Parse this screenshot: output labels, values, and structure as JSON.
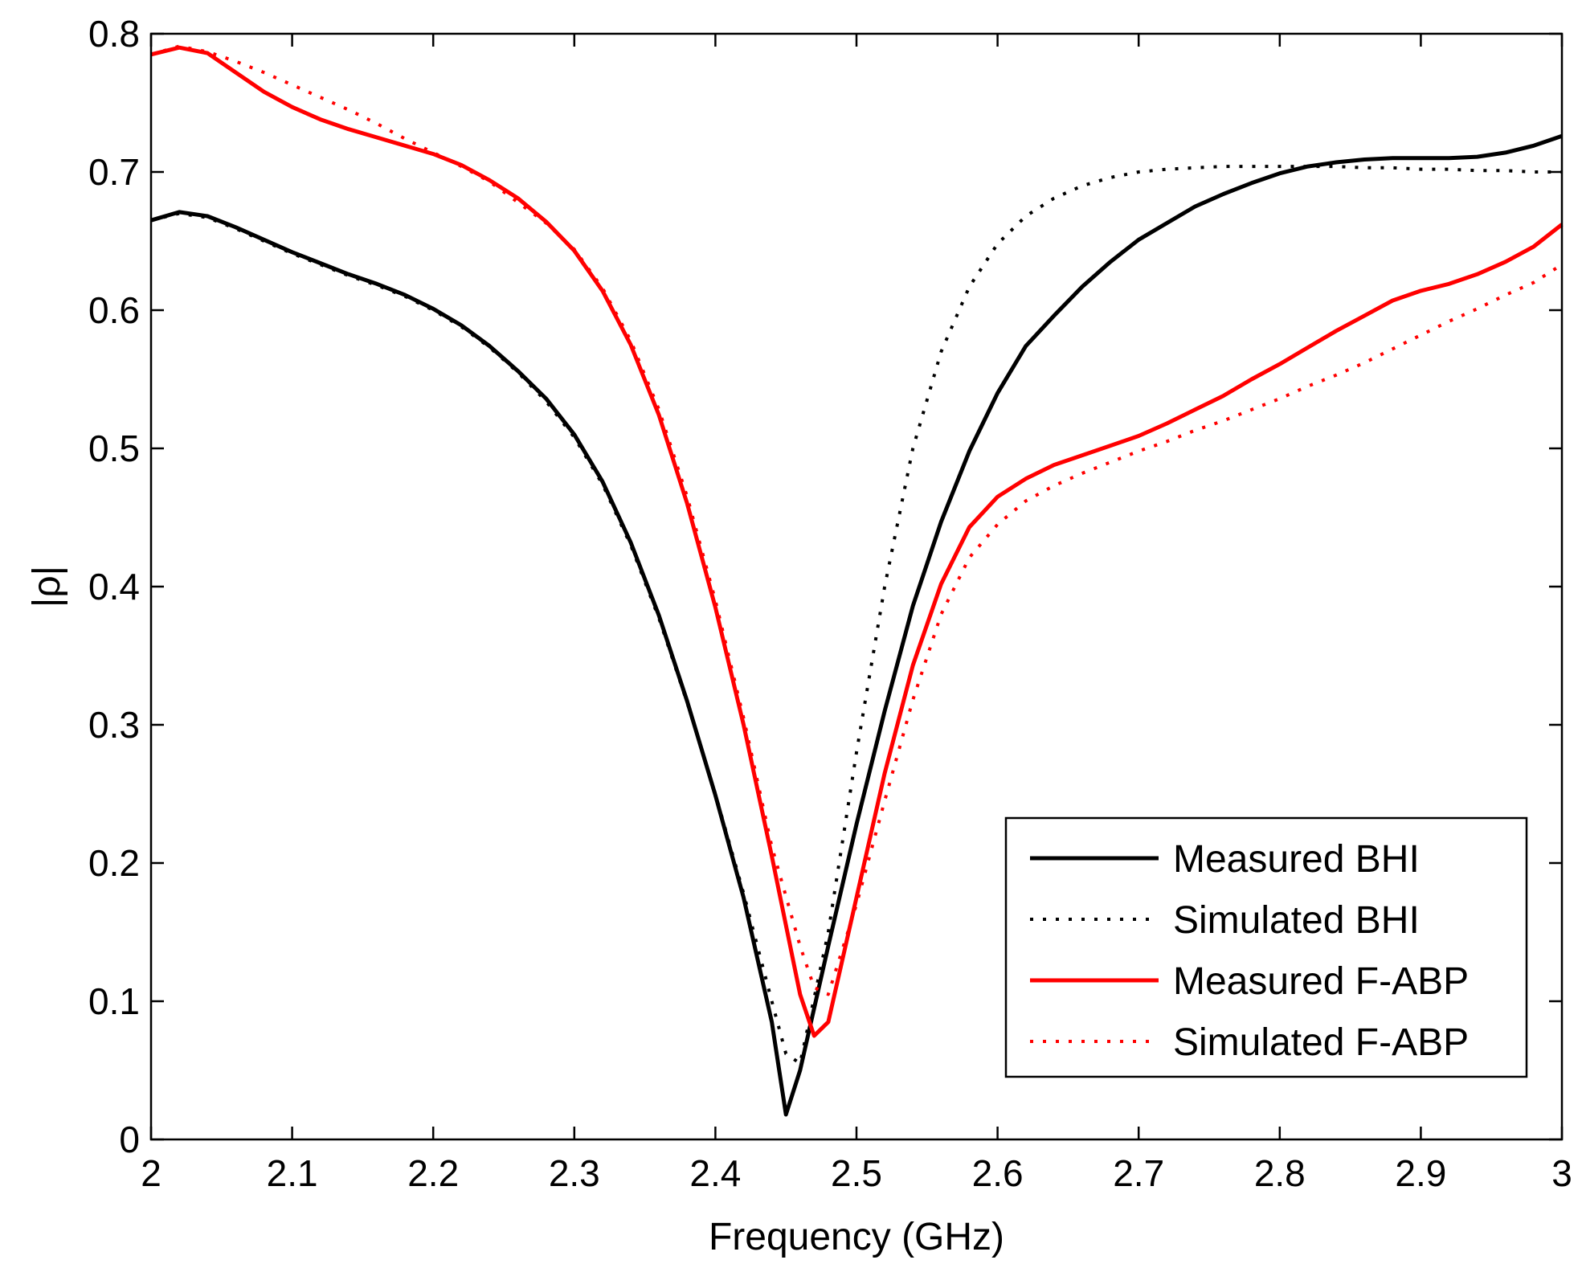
{
  "chart_data": {
    "type": "line",
    "title": "",
    "xlabel": "Frequency (GHz)",
    "ylabel": "|ρ|",
    "xlim": [
      2,
      3
    ],
    "ylim": [
      0,
      0.8
    ],
    "xticks": [
      2,
      2.1,
      2.2,
      2.3,
      2.4,
      2.5,
      2.6,
      2.7,
      2.8,
      2.9,
      3
    ],
    "xtick_labels": [
      "2",
      "2.1",
      "2.2",
      "2.3",
      "2.4",
      "2.5",
      "2.6",
      "2.7",
      "2.8",
      "2.9",
      "3"
    ],
    "yticks": [
      0,
      0.1,
      0.2,
      0.3,
      0.4,
      0.5,
      0.6,
      0.7,
      0.8
    ],
    "ytick_labels": [
      "0",
      "0.1",
      "0.2",
      "0.3",
      "0.4",
      "0.5",
      "0.6",
      "0.7",
      "0.8"
    ],
    "grid": false,
    "legend_position": "bottom-right",
    "series": [
      {
        "name": "Measured BHI",
        "color": "#000000",
        "style": "solid",
        "x": [
          2.0,
          2.02,
          2.04,
          2.06,
          2.08,
          2.1,
          2.12,
          2.14,
          2.16,
          2.18,
          2.2,
          2.22,
          2.24,
          2.26,
          2.28,
          2.3,
          2.32,
          2.34,
          2.36,
          2.38,
          2.4,
          2.42,
          2.44,
          2.45,
          2.46,
          2.48,
          2.5,
          2.52,
          2.54,
          2.56,
          2.58,
          2.6,
          2.62,
          2.64,
          2.66,
          2.68,
          2.7,
          2.72,
          2.74,
          2.76,
          2.78,
          2.8,
          2.82,
          2.84,
          2.86,
          2.88,
          2.9,
          2.92,
          2.94,
          2.96,
          2.98,
          3.0
        ],
        "y": [
          0.665,
          0.671,
          0.668,
          0.66,
          0.651,
          0.642,
          0.634,
          0.626,
          0.619,
          0.611,
          0.601,
          0.589,
          0.574,
          0.556,
          0.536,
          0.51,
          0.476,
          0.432,
          0.379,
          0.317,
          0.249,
          0.175,
          0.085,
          0.018,
          0.05,
          0.14,
          0.228,
          0.31,
          0.386,
          0.447,
          0.498,
          0.54,
          0.574,
          0.596,
          0.617,
          0.635,
          0.651,
          0.663,
          0.675,
          0.684,
          0.692,
          0.699,
          0.704,
          0.707,
          0.709,
          0.71,
          0.71,
          0.71,
          0.711,
          0.714,
          0.719,
          0.726
        ]
      },
      {
        "name": "Simulated BHI",
        "color": "#000000",
        "style": "dotted",
        "x": [
          2.0,
          2.02,
          2.04,
          2.06,
          2.08,
          2.1,
          2.12,
          2.14,
          2.16,
          2.18,
          2.2,
          2.22,
          2.24,
          2.26,
          2.28,
          2.3,
          2.32,
          2.34,
          2.36,
          2.38,
          2.4,
          2.42,
          2.44,
          2.45,
          2.46,
          2.48,
          2.5,
          2.52,
          2.54,
          2.56,
          2.58,
          2.6,
          2.62,
          2.64,
          2.66,
          2.68,
          2.7,
          2.72,
          2.74,
          2.76,
          2.78,
          2.8,
          2.82,
          2.84,
          2.86,
          2.88,
          2.9,
          2.92,
          2.94,
          2.96,
          2.98,
          3.0
        ],
        "y": [
          0.665,
          0.67,
          0.667,
          0.659,
          0.65,
          0.641,
          0.633,
          0.625,
          0.618,
          0.61,
          0.6,
          0.588,
          0.573,
          0.555,
          0.534,
          0.508,
          0.474,
          0.43,
          0.377,
          0.316,
          0.25,
          0.178,
          0.1,
          0.062,
          0.055,
          0.15,
          0.28,
          0.4,
          0.5,
          0.57,
          0.617,
          0.648,
          0.668,
          0.681,
          0.69,
          0.696,
          0.7,
          0.702,
          0.703,
          0.704,
          0.704,
          0.704,
          0.704,
          0.704,
          0.703,
          0.703,
          0.702,
          0.702,
          0.701,
          0.701,
          0.7,
          0.7
        ]
      },
      {
        "name": "Measured F-ABP",
        "color": "#ff0000",
        "style": "solid",
        "x": [
          2.0,
          2.02,
          2.04,
          2.06,
          2.08,
          2.1,
          2.12,
          2.14,
          2.16,
          2.18,
          2.2,
          2.22,
          2.24,
          2.26,
          2.28,
          2.3,
          2.32,
          2.34,
          2.36,
          2.38,
          2.4,
          2.42,
          2.44,
          2.46,
          2.47,
          2.48,
          2.5,
          2.52,
          2.54,
          2.56,
          2.58,
          2.6,
          2.62,
          2.64,
          2.66,
          2.68,
          2.7,
          2.72,
          2.74,
          2.76,
          2.78,
          2.8,
          2.82,
          2.84,
          2.86,
          2.88,
          2.9,
          2.92,
          2.94,
          2.96,
          2.98,
          3.0
        ],
        "y": [
          0.785,
          0.79,
          0.786,
          0.772,
          0.758,
          0.747,
          0.738,
          0.731,
          0.725,
          0.719,
          0.713,
          0.705,
          0.694,
          0.681,
          0.664,
          0.643,
          0.614,
          0.575,
          0.524,
          0.46,
          0.385,
          0.3,
          0.205,
          0.105,
          0.075,
          0.085,
          0.175,
          0.265,
          0.343,
          0.402,
          0.443,
          0.465,
          0.478,
          0.488,
          0.495,
          0.502,
          0.509,
          0.518,
          0.528,
          0.538,
          0.55,
          0.561,
          0.573,
          0.585,
          0.596,
          0.607,
          0.614,
          0.619,
          0.626,
          0.635,
          0.646,
          0.662
        ]
      },
      {
        "name": "Simulated F-ABP",
        "color": "#ff0000",
        "style": "dotted",
        "x": [
          2.0,
          2.02,
          2.04,
          2.06,
          2.08,
          2.1,
          2.12,
          2.14,
          2.16,
          2.18,
          2.2,
          2.22,
          2.24,
          2.26,
          2.28,
          2.3,
          2.32,
          2.34,
          2.36,
          2.38,
          2.4,
          2.42,
          2.44,
          2.46,
          2.47,
          2.48,
          2.5,
          2.52,
          2.54,
          2.56,
          2.58,
          2.6,
          2.62,
          2.64,
          2.66,
          2.68,
          2.7,
          2.72,
          2.74,
          2.76,
          2.78,
          2.8,
          2.82,
          2.84,
          2.86,
          2.88,
          2.9,
          2.92,
          2.94,
          2.96,
          2.98,
          3.0
        ],
        "y": [
          0.785,
          0.791,
          0.787,
          0.78,
          0.772,
          0.763,
          0.754,
          0.745,
          0.735,
          0.724,
          0.714,
          0.704,
          0.693,
          0.678,
          0.663,
          0.644,
          0.616,
          0.578,
          0.528,
          0.465,
          0.39,
          0.305,
          0.212,
          0.14,
          0.11,
          0.105,
          0.17,
          0.245,
          0.318,
          0.38,
          0.421,
          0.445,
          0.462,
          0.473,
          0.482,
          0.49,
          0.498,
          0.505,
          0.513,
          0.52,
          0.528,
          0.536,
          0.545,
          0.553,
          0.562,
          0.572,
          0.582,
          0.592,
          0.601,
          0.611,
          0.62,
          0.633
        ]
      }
    ]
  }
}
